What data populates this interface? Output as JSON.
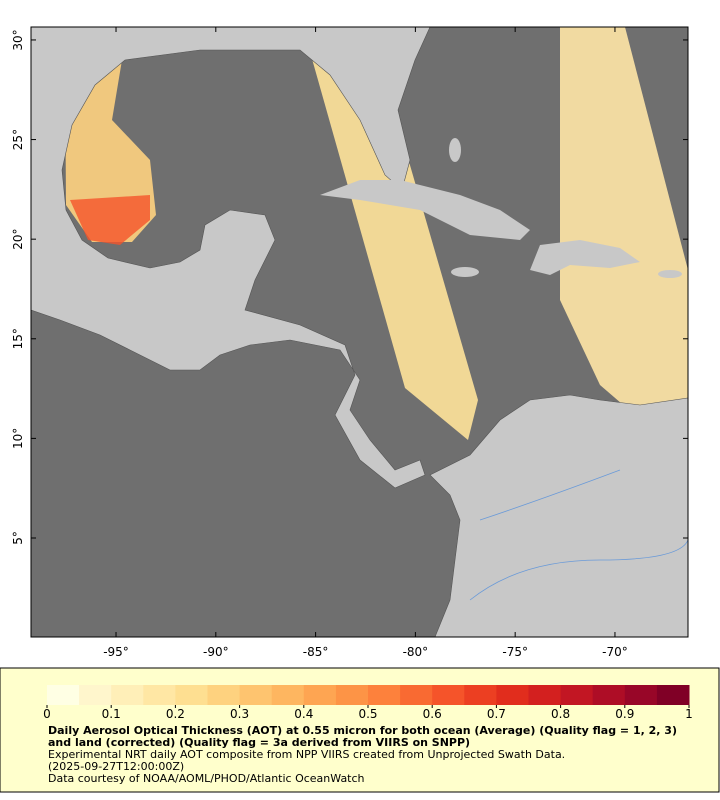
{
  "map": {
    "xlim": [
      -99.26,
      -66.34
    ],
    "ylim": [
      0.03,
      30.65
    ],
    "xticks": [
      {
        "value": -95,
        "label": "-95°"
      },
      {
        "value": -90,
        "label": "-90°"
      },
      {
        "value": -85,
        "label": "-85°"
      },
      {
        "value": -80,
        "label": "-80°"
      },
      {
        "value": -75,
        "label": "-75°"
      },
      {
        "value": -70,
        "label": "-70°"
      }
    ],
    "yticks": [
      {
        "value": 5,
        "label": "5°"
      },
      {
        "value": 10,
        "label": "10°"
      },
      {
        "value": 15,
        "label": "15°"
      },
      {
        "value": 20,
        "label": "20°"
      },
      {
        "value": 25,
        "label": "25°"
      },
      {
        "value": 30,
        "label": "30°"
      }
    ]
  },
  "colorbar": {
    "clim": [
      0,
      1
    ],
    "ticks": [
      0,
      0.1,
      0.2,
      0.3,
      0.4,
      0.5,
      0.6,
      0.7,
      0.8,
      0.9,
      1
    ],
    "colors": [
      "#ffffe4",
      "#fff6cc",
      "#ffefb8",
      "#ffe7a4",
      "#fedf91",
      "#fed27f",
      "#fec46f",
      "#feb660",
      "#fea552",
      "#fd9446",
      "#fd813c",
      "#f96a32",
      "#f5542a",
      "#ec3f22",
      "#e12d1d",
      "#d3201f",
      "#c21623",
      "#ae0d26",
      "#980628",
      "#800026"
    ]
  },
  "caption": {
    "title": "Daily Aerosol Optical Thickness (AOT) at 0.55 micron for both ocean (Average) (Quality flag = 1, 2, 3) and land (corrected) (Quality flag = 3a derived from VIIRS on SNPP)",
    "lines": [
      "Experimental NRT daily AOT composite from NPP VIIRS created from Unprojected Swath Data.",
      "(2025-09-27T12:00:00Z)",
      "Data courtesy of NOAA/AOML/PHOD/Atlantic OceanWatch"
    ]
  }
}
